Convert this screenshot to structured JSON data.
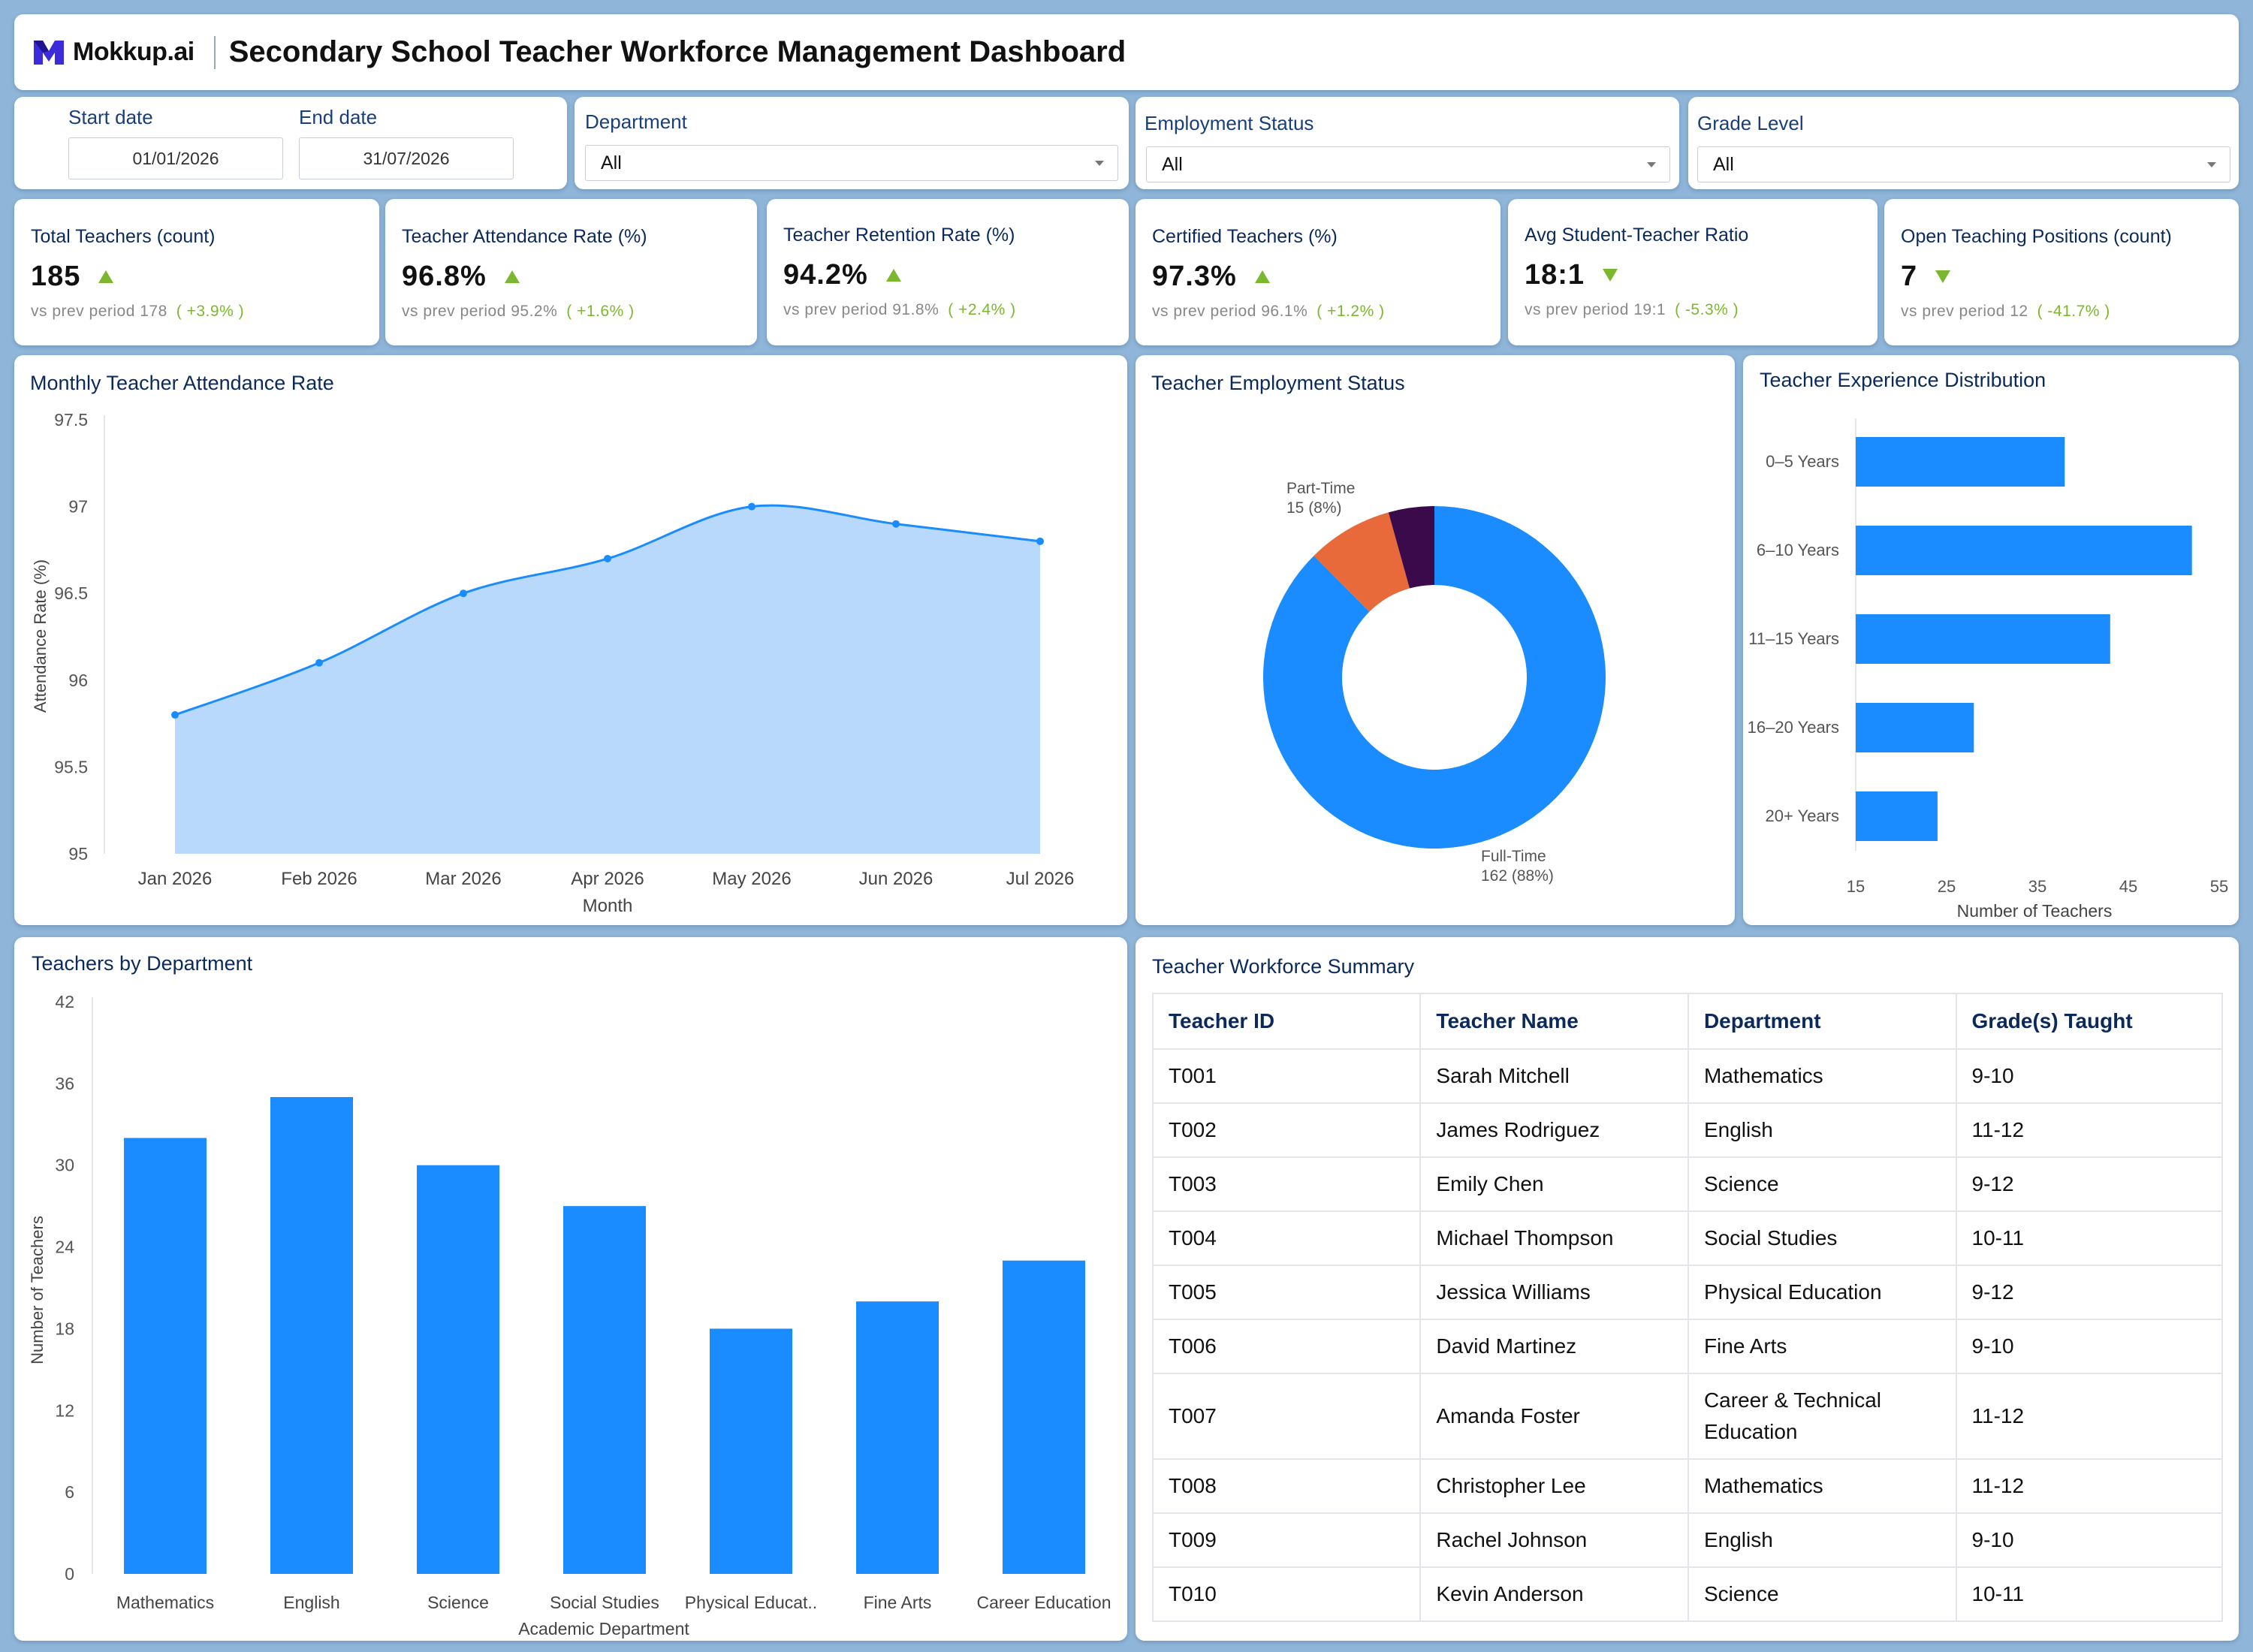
{
  "header": {
    "logo_text": "Mokkup.ai",
    "title": "Secondary School Teacher Workforce Management Dashboard"
  },
  "filters": {
    "start_label": "Start date",
    "start_value": "01/01/2026",
    "end_label": "End date",
    "end_value": "31/07/2026",
    "department_label": "Department",
    "department_value": "All",
    "employment_label": "Employment Status",
    "employment_value": "All",
    "grade_label": "Grade Level",
    "grade_value": "All"
  },
  "kpis": [
    {
      "title": "Total Teachers (count)",
      "value": "185",
      "trend": "up",
      "prev": "vs prev period 178",
      "delta": "( +3.9% )"
    },
    {
      "title": "Teacher Attendance Rate (%)",
      "value": "96.8%",
      "trend": "up",
      "prev": "vs prev period 95.2%",
      "delta": "( +1.6% )"
    },
    {
      "title": "Teacher Retention Rate (%)",
      "value": "94.2%",
      "trend": "up",
      "prev": "vs prev period 91.8%",
      "delta": "( +2.4% )"
    },
    {
      "title": "Certified Teachers (%)",
      "value": "97.3%",
      "trend": "up",
      "prev": "vs prev period 96.1%",
      "delta": "( +1.2% )"
    },
    {
      "title": "Avg Student-Teacher Ratio",
      "value": "18:1",
      "trend": "down",
      "prev": "vs prev period 19:1",
      "delta": "( -5.3% )"
    },
    {
      "title": "Open Teaching Positions (count)",
      "value": "7",
      "trend": "down",
      "prev": "vs prev period 12",
      "delta": "( -41.7% )"
    }
  ],
  "colors": {
    "primary": "#1a8cff",
    "area_fill": "#b8d9fb",
    "orange": "#e8693a",
    "dark_purple": "#3a0a4a",
    "positive": "#7cb82f"
  },
  "chart_data": [
    {
      "type": "area",
      "title": "Monthly Teacher Attendance Rate",
      "xlabel": "Month",
      "ylabel": "Attendance Rate (%)",
      "categories": [
        "Jan 2026",
        "Feb 2026",
        "Mar 2026",
        "Apr 2026",
        "May 2026",
        "Jun 2026",
        "Jul 2026"
      ],
      "values": [
        95.8,
        96.1,
        96.5,
        96.7,
        97.0,
        96.9,
        96.8
      ],
      "ylim": [
        95,
        97.5
      ],
      "yticks": [
        "97.5",
        "97",
        "96.5",
        "96",
        "95.5",
        "95"
      ],
      "grid": false
    },
    {
      "type": "pie",
      "title": "Teacher Employment Status",
      "slices": [
        {
          "label": "Full-Time",
          "value": 162,
          "text": "162 (88%)",
          "color": "#1a8cff"
        },
        {
          "label": "Part-Time",
          "value": 15,
          "text": "15 (8%)",
          "color": "#e8693a"
        },
        {
          "label": "",
          "value": 8,
          "color": "#3a0a4a"
        }
      ]
    },
    {
      "type": "bar",
      "orientation": "horizontal",
      "title": "Teacher Experience Distribution",
      "xlabel": "Number of Teachers",
      "categories": [
        "0–5 Years",
        "6–10 Years",
        "11–15 Years",
        "16–20 Years",
        "20+ Years"
      ],
      "values": [
        38,
        52,
        43,
        28,
        24
      ],
      "xlim": [
        15,
        55
      ],
      "xticks": [
        "15",
        "25",
        "35",
        "45",
        "55"
      ]
    },
    {
      "type": "bar",
      "title": "Teachers by Department",
      "xlabel": "Academic Department",
      "ylabel": "Number of Teachers",
      "categories": [
        "Mathematics",
        "English",
        "Science",
        "Social Studies",
        "Physical Educat..",
        "Fine Arts",
        "Career Education"
      ],
      "values": [
        32,
        35,
        30,
        27,
        18,
        20,
        23
      ],
      "ylim": [
        0,
        42
      ],
      "yticks": [
        "42",
        "36",
        "30",
        "24",
        "18",
        "12",
        "6",
        "0"
      ]
    },
    {
      "type": "table",
      "title": "Teacher Workforce Summary",
      "columns": [
        "Teacher ID",
        "Teacher Name",
        "Department",
        "Grade(s) Taught"
      ],
      "rows": [
        [
          "T001",
          "Sarah Mitchell",
          "Mathematics",
          "9-10"
        ],
        [
          "T002",
          "James Rodriguez",
          "English",
          "11-12"
        ],
        [
          "T003",
          "Emily Chen",
          "Science",
          "9-12"
        ],
        [
          "T004",
          "Michael Thompson",
          "Social Studies",
          "10-11"
        ],
        [
          "T005",
          "Jessica Williams",
          "Physical Education",
          "9-12"
        ],
        [
          "T006",
          "David Martinez",
          "Fine Arts",
          "9-10"
        ],
        [
          "T007",
          "Amanda Foster",
          "Career & Technical Education",
          "11-12"
        ],
        [
          "T008",
          "Christopher Lee",
          "Mathematics",
          "11-12"
        ],
        [
          "T009",
          "Rachel Johnson",
          "English",
          "9-10"
        ],
        [
          "T010",
          "Kevin Anderson",
          "Science",
          "10-11"
        ]
      ]
    }
  ]
}
